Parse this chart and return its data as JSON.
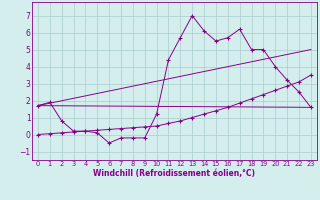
{
  "xlabel": "Windchill (Refroidissement éolien,°C)",
  "bg_color": "#d4eeee",
  "line_color": "#880088",
  "grid_color": "#aacccc",
  "xlim": [
    -0.5,
    23.5
  ],
  "ylim": [
    -1.5,
    7.8
  ],
  "yticks": [
    -1,
    0,
    1,
    2,
    3,
    4,
    5,
    6,
    7
  ],
  "xticks": [
    0,
    1,
    2,
    3,
    4,
    5,
    6,
    7,
    8,
    9,
    10,
    11,
    12,
    13,
    14,
    15,
    16,
    17,
    18,
    19,
    20,
    21,
    22,
    23
  ],
  "series0": [
    1.7,
    1.9,
    0.8,
    0.2,
    0.2,
    0.1,
    -0.5,
    -0.2,
    -0.2,
    -0.2,
    1.2,
    4.4,
    5.7,
    7.0,
    6.1,
    5.5,
    5.7,
    6.2,
    5.0,
    5.0,
    4.0,
    3.2,
    2.5,
    1.6
  ],
  "line1": [
    [
      0,
      1.7
    ],
    [
      23,
      1.6
    ]
  ],
  "line2": [
    [
      0,
      1.7
    ],
    [
      23,
      5.0
    ]
  ],
  "series3": [
    0.0,
    0.05,
    0.1,
    0.15,
    0.2,
    0.25,
    0.3,
    0.35,
    0.4,
    0.45,
    0.5,
    0.65,
    0.8,
    1.0,
    1.2,
    1.4,
    1.6,
    1.85,
    2.1,
    2.35,
    2.6,
    2.85,
    3.1,
    3.5
  ]
}
